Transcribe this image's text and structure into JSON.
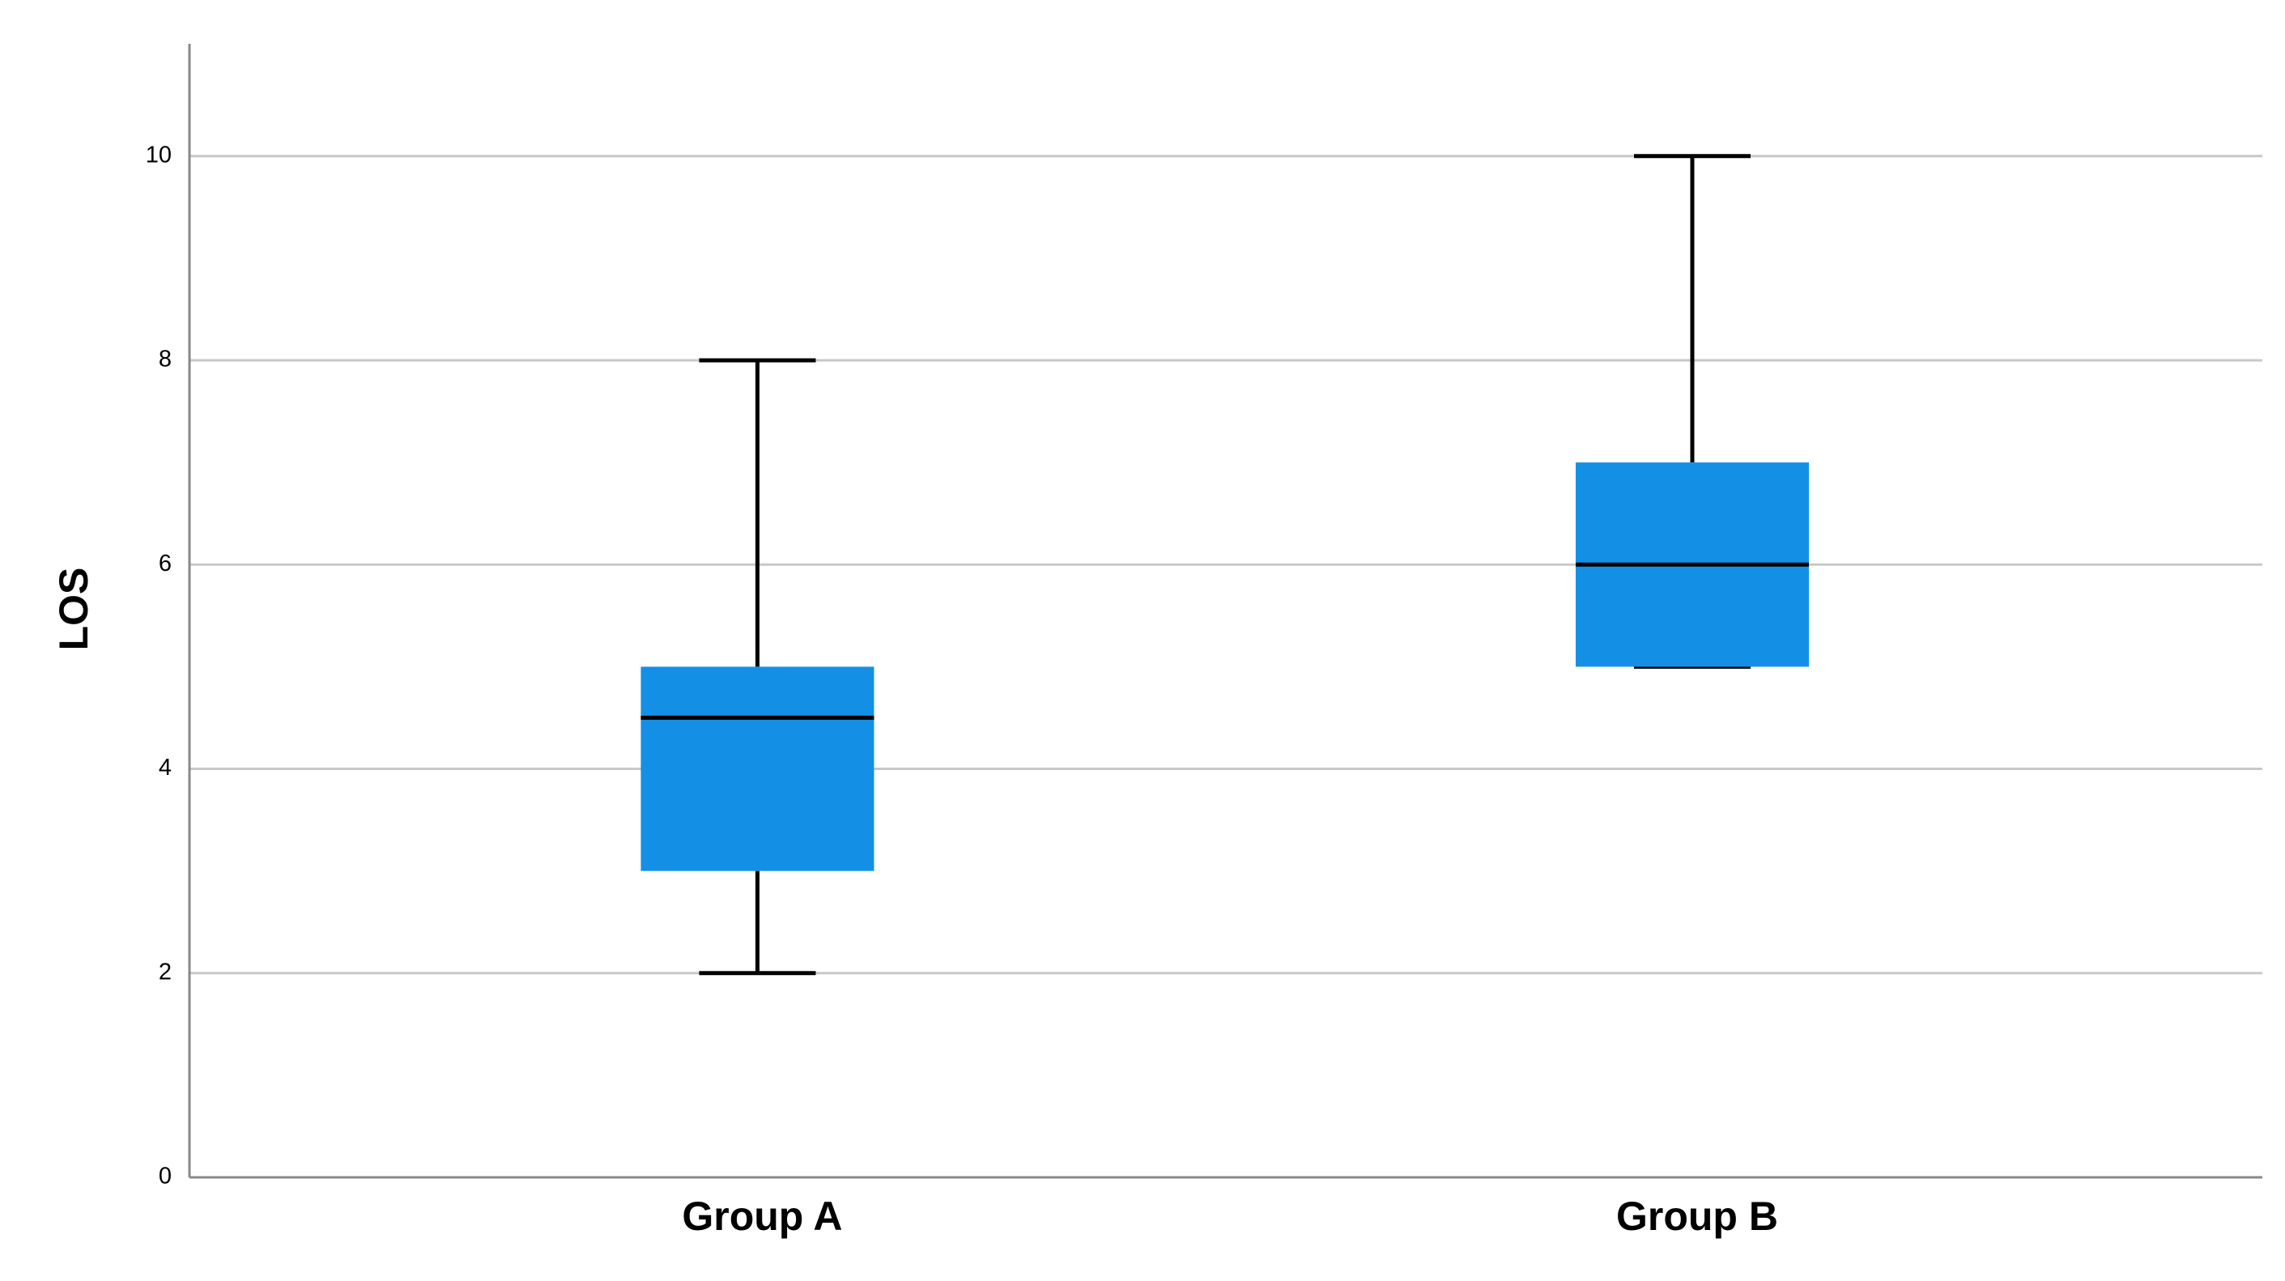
{
  "chart_data": {
    "type": "box",
    "y_label": "LOS",
    "categories": [
      "Group A",
      "Group B"
    ],
    "boxes": [
      {
        "min": 2,
        "q1": 3,
        "median": 4.5,
        "q3": 5,
        "max": 8
      },
      {
        "min": 5,
        "q1": 5,
        "median": 6,
        "q3": 7,
        "max": 10
      }
    ],
    "color": "#1390e6",
    "ylim": [
      0,
      11.1
    ],
    "yticks": [
      0,
      2,
      4,
      6,
      8,
      10
    ],
    "grid": true
  }
}
